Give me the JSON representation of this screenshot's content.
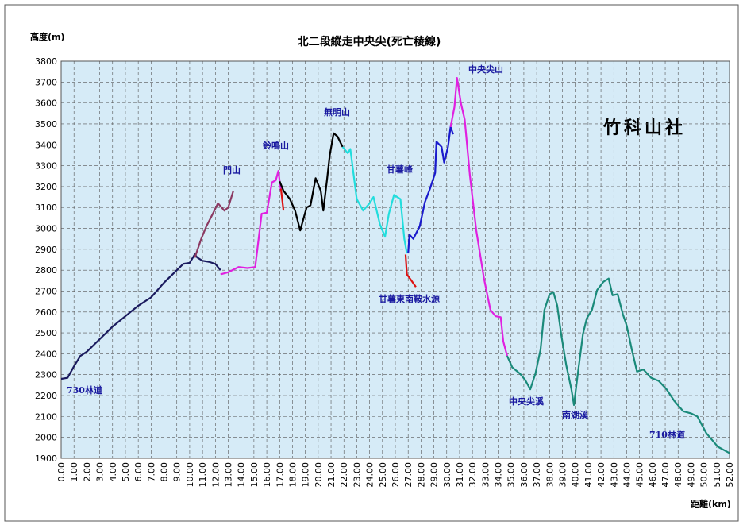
{
  "chart_data": {
    "type": "line",
    "title": "北二段縱走中央尖(死亡稜線)",
    "y_label": "高度(m)",
    "x_label": "距離(km)",
    "watermark": "竹科山社",
    "annotations": [
      "730林道",
      "門山",
      "鈴鳴山",
      "無明山",
      "甘薯峰",
      "中央尖山",
      "甘薯東南鞍水源",
      "中央尖溪",
      "南湖溪",
      "710林道"
    ],
    "xlim": [
      0,
      52
    ],
    "ylim": [
      1900,
      3800
    ],
    "grid": true,
    "yticks": [
      1900,
      2000,
      2100,
      2200,
      2300,
      2400,
      2500,
      2600,
      2700,
      2800,
      2900,
      3000,
      3100,
      3200,
      3300,
      3400,
      3500,
      3600,
      3700,
      3800
    ],
    "xticks": [
      {
        "value": 0,
        "label": "0.00"
      },
      {
        "value": 1,
        "label": "1.00"
      },
      {
        "value": 2,
        "label": "2.00"
      },
      {
        "value": 3,
        "label": "3.00"
      },
      {
        "value": 4,
        "label": "4.00"
      },
      {
        "value": 5,
        "label": "5.00"
      },
      {
        "value": 6,
        "label": "6.00"
      },
      {
        "value": 7,
        "label": "7.00"
      },
      {
        "value": 8,
        "label": "8.00"
      },
      {
        "value": 9,
        "label": "9.00"
      },
      {
        "value": 10,
        "label": "10.00"
      },
      {
        "value": 11,
        "label": "11.00"
      },
      {
        "value": 12,
        "label": "12.00"
      },
      {
        "value": 13,
        "label": "13.00"
      },
      {
        "value": 14,
        "label": "14.00"
      },
      {
        "value": 15,
        "label": "15.00"
      },
      {
        "value": 16,
        "label": "16.00"
      },
      {
        "value": 17,
        "label": "17.00"
      },
      {
        "value": 18,
        "label": "18.00"
      },
      {
        "value": 19,
        "label": "19.00"
      },
      {
        "value": 20,
        "label": "20.00"
      },
      {
        "value": 21,
        "label": "21.00"
      },
      {
        "value": 22,
        "label": "22.00"
      },
      {
        "value": 23,
        "label": "23.00"
      },
      {
        "value": 24,
        "label": "24.00"
      },
      {
        "value": 25,
        "label": "25.00"
      },
      {
        "value": 26,
        "label": "26.00"
      },
      {
        "value": 27,
        "label": "27.00"
      },
      {
        "value": 28,
        "label": "28.00"
      },
      {
        "value": 29,
        "label": "29.00"
      },
      {
        "value": 30,
        "label": "30.00"
      },
      {
        "value": 31,
        "label": "31.00"
      },
      {
        "value": 32,
        "label": "32.00"
      },
      {
        "value": 33,
        "label": "33.00"
      },
      {
        "value": 34,
        "label": "34.00"
      },
      {
        "value": 35,
        "label": "35.00"
      },
      {
        "value": 36,
        "label": "36.00"
      },
      {
        "value": 37,
        "label": "37.00"
      },
      {
        "value": 38,
        "label": "38.00"
      },
      {
        "value": 39,
        "label": "39.00"
      },
      {
        "value": 40,
        "label": "40.00"
      },
      {
        "value": 41,
        "label": "41.00"
      },
      {
        "value": 42,
        "label": "42.00"
      },
      {
        "value": 43,
        "label": "43.00"
      },
      {
        "value": 44,
        "label": "44.00"
      },
      {
        "value": 45,
        "label": "45.00"
      },
      {
        "value": 46,
        "label": "46.00"
      },
      {
        "value": 47,
        "label": "47.00"
      },
      {
        "value": 48,
        "label": "48.00"
      },
      {
        "value": 49,
        "label": "49.00"
      },
      {
        "value": 50,
        "label": "50.00"
      },
      {
        "value": 51,
        "label": "51.00"
      },
      {
        "value": 52,
        "label": "52.00"
      }
    ],
    "series": [
      {
        "color": "#1a1a5e",
        "x": [
          0,
          0.5,
          1,
          1.5,
          2,
          3,
          4,
          5,
          6,
          7,
          8,
          9,
          9.5,
          10,
          10.4,
          10.6,
          11,
          11.5,
          12,
          12.4
        ],
        "values": [
          2280,
          2285,
          2340,
          2390,
          2410,
          2470,
          2530,
          2580,
          2630,
          2670,
          2740,
          2800,
          2830,
          2835,
          2876,
          2860,
          2845,
          2840,
          2830,
          2800
        ]
      },
      {
        "color": "#8b3a62",
        "x": [
          10.4,
          10.9,
          11.3,
          11.8,
          12.2,
          12.7,
          13,
          13.4
        ],
        "values": [
          2860,
          2950,
          3010,
          3070,
          3120,
          3085,
          3100,
          3180
        ]
      },
      {
        "color": "#e020e0",
        "x": [
          12.4,
          13,
          13.8,
          14.5,
          15.1,
          15.6,
          16,
          16.4,
          16.7,
          16.9,
          17.1
        ],
        "values": [
          2780,
          2790,
          2815,
          2810,
          2815,
          3070,
          3075,
          3220,
          3230,
          3275,
          3180
        ]
      },
      {
        "color": "#000000",
        "x": [
          17.0,
          17.3,
          17.8,
          18.2,
          18.6,
          19.1,
          19.4,
          19.8,
          20.2,
          20.4,
          20.7,
          20.9,
          21.2,
          21.5,
          21.9
        ],
        "values": [
          3225,
          3180,
          3140,
          3085,
          2990,
          3100,
          3110,
          3240,
          3180,
          3085,
          3240,
          3350,
          3455,
          3440,
          3390
        ]
      },
      {
        "color": "#dd1111",
        "x": [
          17.1,
          17.3
        ],
        "values": [
          3190,
          3085
        ]
      },
      {
        "color": "#22dddd",
        "x": [
          21.9,
          22.3,
          22.5,
          23.0,
          23.5,
          24.0,
          24.3,
          24.8,
          25.2,
          25.5,
          25.9,
          26.4,
          26.7,
          26.9
        ],
        "values": [
          3390,
          3360,
          3380,
          3140,
          3085,
          3120,
          3150,
          3020,
          2960,
          3070,
          3160,
          3140,
          2950,
          2880
        ]
      },
      {
        "color": "#dd1111",
        "x": [
          26.8,
          26.9,
          27.2,
          27.6
        ],
        "values": [
          2875,
          2780,
          2755,
          2720
        ]
      },
      {
        "color": "#1a1acc",
        "x": [
          27.0,
          27.1,
          27.4,
          27.9,
          28.3,
          28.7,
          29.1,
          29.2,
          29.6,
          29.8,
          30.1,
          30.3,
          30.5
        ],
        "values": [
          2880,
          2970,
          2950,
          3010,
          3125,
          3190,
          3265,
          3415,
          3390,
          3315,
          3390,
          3485,
          3450
        ]
      },
      {
        "color": "#e020e0",
        "x": [
          30.3,
          30.6,
          30.8,
          31.1,
          31.4,
          31.8,
          32.3,
          32.9,
          33.4,
          33.8,
          34.2,
          34.4,
          34.7
        ],
        "values": [
          3485,
          3580,
          3720,
          3600,
          3520,
          3255,
          2990,
          2760,
          2610,
          2580,
          2575,
          2460,
          2390
        ]
      },
      {
        "color": "#1a8a7a",
        "x": [
          34.7,
          35.1,
          35.7,
          36.1,
          36.5,
          36.9,
          37.3,
          37.6,
          38.0,
          38.3,
          38.6,
          38.9,
          39.3,
          39.7,
          39.9,
          40.2,
          40.6,
          40.9,
          41.3,
          41.7,
          42.2,
          42.6,
          42.9,
          43.3,
          43.7,
          44.0,
          44.4,
          44.8,
          45.3,
          45.9,
          46.5,
          47.1,
          47.7,
          48.4,
          49.0,
          49.5,
          50.2,
          51.1,
          52.0
        ],
        "values": [
          2390,
          2335,
          2305,
          2275,
          2230,
          2305,
          2420,
          2610,
          2685,
          2695,
          2630,
          2495,
          2345,
          2230,
          2155,
          2305,
          2495,
          2570,
          2610,
          2705,
          2745,
          2760,
          2680,
          2685,
          2590,
          2535,
          2420,
          2315,
          2325,
          2285,
          2270,
          2230,
          2175,
          2125,
          2115,
          2100,
          2020,
          1955,
          1925
        ]
      }
    ]
  }
}
